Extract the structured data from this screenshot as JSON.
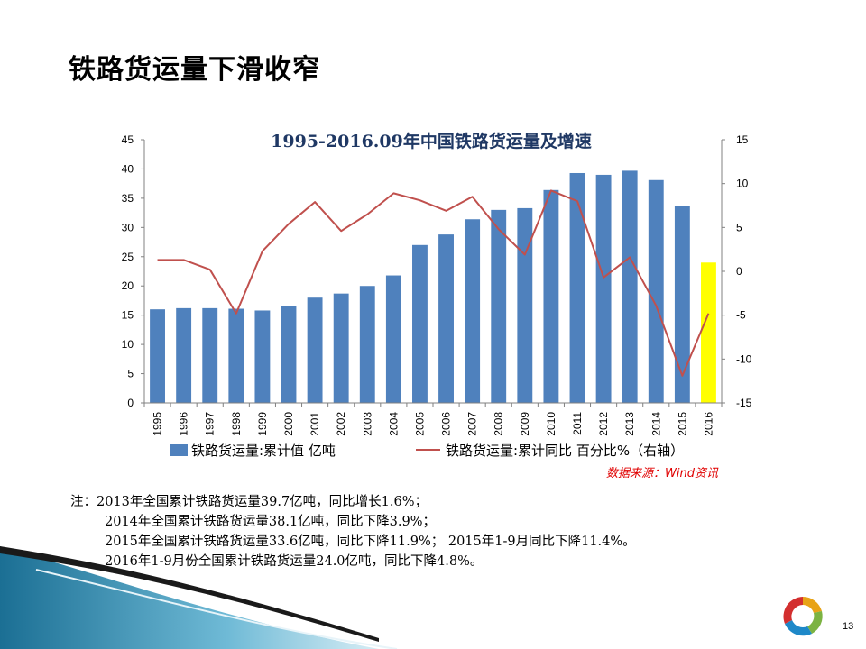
{
  "slide": {
    "title": "铁路货运量下滑收窄",
    "page_number": "13"
  },
  "chart_data": {
    "type": "bar",
    "title": "1995-2016.09年中国铁路货运量及增速",
    "categories": [
      "1995",
      "1996",
      "1997",
      "1998",
      "1999",
      "2000",
      "2001",
      "2002",
      "2003",
      "2004",
      "2005",
      "2006",
      "2007",
      "2008",
      "2009",
      "2010",
      "2011",
      "2012",
      "2013",
      "2014",
      "2015",
      "2016"
    ],
    "series": [
      {
        "name": "铁路货运量:累计值 亿吨",
        "type": "bar",
        "axis": "left",
        "color": "#4f81bd",
        "values": [
          16.0,
          16.2,
          16.2,
          16.1,
          15.8,
          16.5,
          18.0,
          18.7,
          20.0,
          21.8,
          27.0,
          28.8,
          31.4,
          33.0,
          33.3,
          36.4,
          39.3,
          39.0,
          39.7,
          38.1,
          33.6,
          24.0
        ],
        "highlight_index": 21,
        "highlight_color": "#ffff00"
      },
      {
        "name": "铁路货运量:累计同比 百分比%（右轴）",
        "type": "line",
        "axis": "right",
        "color": "#c0504d",
        "values": [
          1.3,
          1.3,
          0.2,
          -4.8,
          2.3,
          5.4,
          7.9,
          4.6,
          6.5,
          8.9,
          8.1,
          6.9,
          8.5,
          4.8,
          1.9,
          9.2,
          8.0,
          -0.7,
          1.6,
          -3.9,
          -11.9,
          -4.8
        ]
      }
    ],
    "ylim": [
      0,
      45
    ],
    "y_ticks": [
      0,
      5,
      10,
      15,
      20,
      25,
      30,
      35,
      40,
      45
    ],
    "y2lim": [
      -15,
      15
    ],
    "y2_ticks": [
      -15,
      -10,
      -5,
      0,
      5,
      10,
      15
    ],
    "xlabel": "",
    "ylabel": "",
    "grid": false,
    "legend": "bottom",
    "source": "数据来源：Wind资讯"
  },
  "notes": [
    "注：2013年全国累计铁路货运量39.7亿吨，同比增长1.6%；",
    "2014年全国累计铁路货运量38.1亿吨，同比下降3.9%；",
    "2015年全国累计铁路货运量33.6亿吨，同比下降11.9%； 2015年1-9月同比下降11.4%。",
    "2016年1-9月份全国累计铁路货运量24.0亿吨，同比下降4.8%。"
  ],
  "colors": {
    "bar": "#4f81bd",
    "bar_highlight": "#ffff00",
    "line": "#c0504d",
    "title": "#1f3864",
    "source": "#e00000"
  }
}
